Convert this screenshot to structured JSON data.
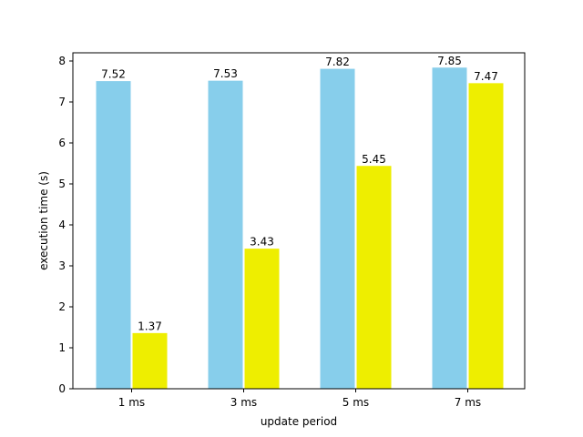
{
  "chart_data": {
    "type": "bar",
    "title": "",
    "xlabel": "update period",
    "ylabel": "execution time (s)",
    "categories": [
      "1 ms",
      "3 ms",
      "5 ms",
      "7 ms"
    ],
    "ylim": [
      0,
      8.2
    ],
    "yticks": [
      0,
      1,
      2,
      3,
      4,
      5,
      6,
      7,
      8
    ],
    "grid": false,
    "legend": "none",
    "series": [
      {
        "values": [
          7.52,
          7.53,
          7.82,
          7.85
        ],
        "labels": [
          "7.52",
          "7.53",
          "7.82",
          "7.85"
        ],
        "color": "#87CEEB"
      },
      {
        "values": [
          1.37,
          3.43,
          5.45,
          7.47
        ],
        "labels": [
          "1.37",
          "3.43",
          "5.45",
          "7.47"
        ],
        "color": "#EEEE00"
      }
    ]
  }
}
